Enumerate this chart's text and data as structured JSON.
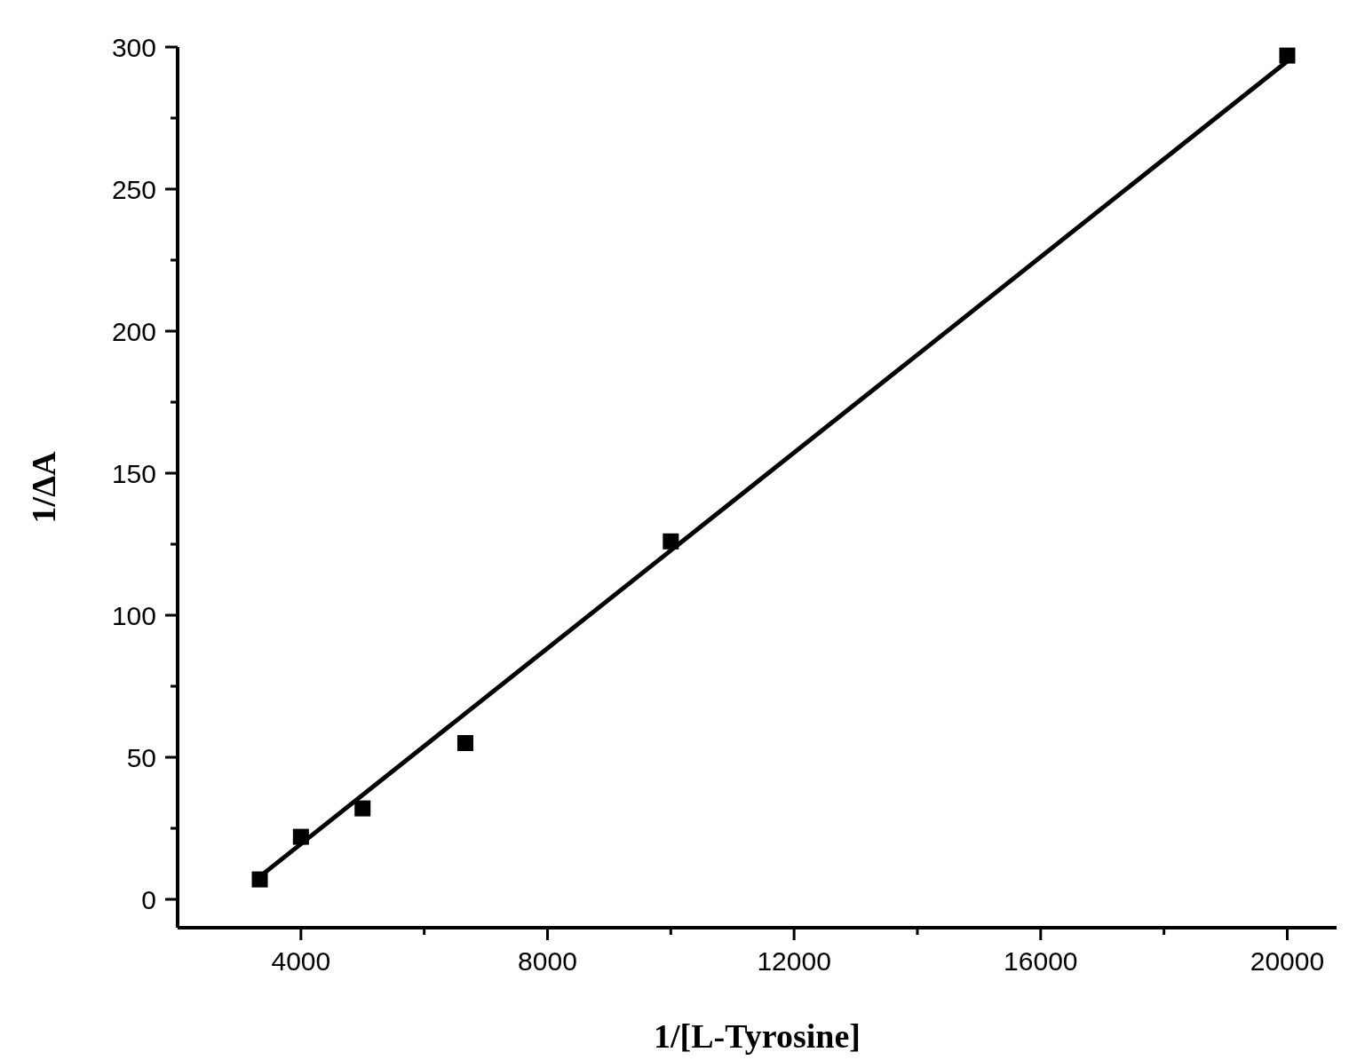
{
  "chart_data": {
    "type": "scatter",
    "xlabel": "1/[L-Tyrosine]",
    "ylabel": "1/ΔA",
    "xlim": [
      2000,
      20800
    ],
    "ylim": [
      -10,
      300
    ],
    "xticks": [
      4000,
      {
        "value": 6000,
        "label": null
      },
      8000,
      {
        "value": 10000,
        "label": null
      },
      12000,
      {
        "value": 14000,
        "label": null
      },
      16000,
      {
        "value": 18000,
        "label": null
      },
      20000
    ],
    "yticks": [
      0,
      {
        "value": 25,
        "label": null
      },
      50,
      {
        "value": 75,
        "label": null
      },
      100,
      {
        "value": 125,
        "label": null
      },
      150,
      {
        "value": 175,
        "label": null
      },
      200,
      {
        "value": 225,
        "label": null
      },
      250,
      {
        "value": 275,
        "label": null
      },
      300
    ],
    "grid": false,
    "series": [
      {
        "marker": "square",
        "color": "#000000",
        "x": [
          3333,
          4000,
          5000,
          6667,
          10000,
          20000
        ],
        "values": [
          7,
          22,
          32,
          55,
          126,
          297
        ]
      },
      {
        "type": "line",
        "color": "#000000",
        "line_style": "solid",
        "x": [
          3333,
          20000
        ],
        "values": [
          8,
          295
        ]
      }
    ]
  }
}
